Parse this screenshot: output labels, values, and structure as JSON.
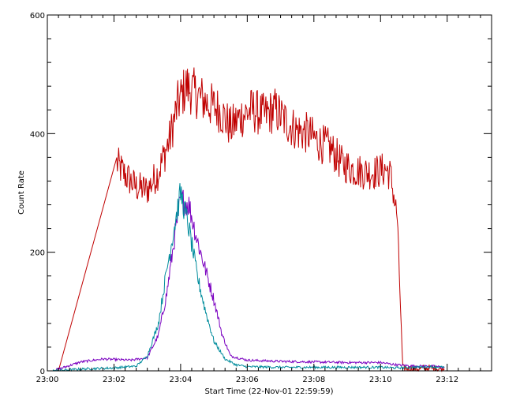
{
  "chart_data": {
    "type": "line",
    "title": "",
    "xlabel": "Start Time (22-Nov-01 22:59:59)",
    "ylabel": "Count Rate",
    "xlim": [
      "23:00",
      "23:13:20"
    ],
    "ylim": [
      0,
      600
    ],
    "x_ticks": [
      "23:00",
      "23:02",
      "23:04",
      "23:06",
      "23:08",
      "23:10",
      "23:12"
    ],
    "y_ticks": [
      0,
      200,
      400,
      600
    ],
    "grid": false,
    "legend": "none",
    "colors": {
      "axis": "#000000",
      "background": "#ffffff",
      "series_red": "#c00000",
      "series_purple": "#7a00c0",
      "series_teal": "#008c9c"
    },
    "series": [
      {
        "color": "#c00000",
        "x": [
          "23:00:20",
          "23:02:05",
          "23:02:20",
          "23:02:40",
          "23:03:00",
          "23:03:20",
          "23:03:40",
          "23:03:55",
          "23:04:10",
          "23:04:30",
          "23:04:50",
          "23:05:10",
          "23:05:30",
          "23:05:50",
          "23:06:10",
          "23:06:30",
          "23:06:50",
          "23:07:10",
          "23:07:30",
          "23:07:50",
          "23:08:10",
          "23:08:30",
          "23:08:50",
          "23:09:10",
          "23:09:30",
          "23:09:50",
          "23:10:10",
          "23:10:18",
          "23:10:30",
          "23:10:40",
          "23:11:00",
          "23:11:30",
          "23:11:55"
        ],
        "values": [
          0,
          350,
          330,
          310,
          305,
          335,
          390,
          450,
          480,
          465,
          450,
          440,
          410,
          430,
          440,
          430,
          440,
          420,
          405,
          400,
          385,
          375,
          350,
          340,
          335,
          335,
          340,
          330,
          260,
          5,
          3,
          5,
          2
        ]
      },
      {
        "color": "#7a00c0",
        "x": [
          "23:00:10",
          "23:01:00",
          "23:01:40",
          "23:02:30",
          "23:03:00",
          "23:03:20",
          "23:03:35",
          "23:03:50",
          "23:04:00",
          "23:04:15",
          "23:04:30",
          "23:04:45",
          "23:05:00",
          "23:05:15",
          "23:05:30",
          "23:06:00",
          "23:07:00",
          "23:08:00",
          "23:09:00",
          "23:10:00",
          "23:10:30",
          "23:11:00",
          "23:11:30",
          "23:11:55"
        ],
        "values": [
          0,
          15,
          20,
          18,
          22,
          60,
          130,
          230,
          290,
          280,
          220,
          170,
          120,
          60,
          25,
          18,
          16,
          15,
          14,
          14,
          10,
          8,
          8,
          6
        ]
      },
      {
        "color": "#008c9c",
        "x": [
          "23:00:10",
          "23:01:00",
          "23:02:00",
          "23:02:40",
          "23:03:00",
          "23:03:20",
          "23:03:35",
          "23:03:50",
          "23:04:00",
          "23:04:15",
          "23:04:30",
          "23:04:45",
          "23:05:00",
          "23:05:20",
          "23:05:40",
          "23:06:00",
          "23:07:00",
          "23:08:00",
          "23:09:00",
          "23:10:00",
          "23:10:30",
          "23:11:00",
          "23:11:30",
          "23:11:55"
        ],
        "values": [
          0,
          3,
          5,
          8,
          25,
          80,
          170,
          250,
          300,
          240,
          160,
          100,
          50,
          20,
          10,
          7,
          6,
          6,
          6,
          6,
          5,
          6,
          7,
          6
        ]
      }
    ]
  }
}
